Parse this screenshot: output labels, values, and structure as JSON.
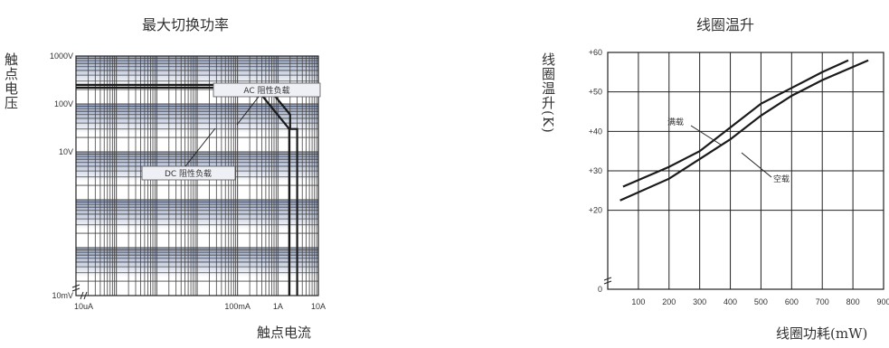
{
  "chart_data": [
    {
      "type": "line",
      "title": "最大切换功率",
      "xlabel": "触点电流",
      "ylabel": "触点电压",
      "xscale": "log",
      "yscale": "log",
      "xlim": [
        "10uA",
        "10A"
      ],
      "ylim": [
        "10mV",
        "1000V"
      ],
      "x_ticks": [
        "10uA",
        "100mA",
        "1A",
        "10A"
      ],
      "y_ticks": [
        "10mV",
        "10V",
        "100V",
        "1000V"
      ],
      "series": [
        {
          "name": "AC 阻性负载",
          "points": [
            [
              1e-05,
              250
            ],
            [
              0.5,
              250
            ],
            [
              2,
              60
            ],
            [
              2,
              30
            ],
            [
              3,
              30
            ],
            [
              3,
              0.01
            ]
          ]
        },
        {
          "name": "DC 阻性负载",
          "points": [
            [
              1e-05,
              220
            ],
            [
              0.28,
              220
            ],
            [
              1.9,
              30
            ],
            [
              1.9,
              0.01
            ]
          ]
        }
      ]
    },
    {
      "type": "line",
      "title": "线圈温升",
      "xlabel": "线圈功耗(mW)",
      "ylabel": "线圈温升(K)",
      "xlim": [
        0,
        900
      ],
      "ylim": [
        0,
        60
      ],
      "x_ticks": [
        "100",
        "200",
        "300",
        "400",
        "500",
        "600",
        "700",
        "800",
        "900"
      ],
      "y_ticks": [
        "0",
        "+20",
        "+30",
        "+40",
        "+50",
        "+60"
      ],
      "series": [
        {
          "name": "满载",
          "points": [
            [
              50,
              26
            ],
            [
              200,
              31
            ],
            [
              300,
              35
            ],
            [
              400,
              41
            ],
            [
              500,
              47
            ],
            [
              600,
              51
            ],
            [
              700,
              55
            ],
            [
              785,
              58
            ]
          ]
        },
        {
          "name": "空载",
          "points": [
            [
              40,
              22.5
            ],
            [
              200,
              28
            ],
            [
              300,
              33
            ],
            [
              400,
              38
            ],
            [
              500,
              44
            ],
            [
              600,
              49
            ],
            [
              700,
              53
            ],
            [
              850,
              58
            ]
          ]
        }
      ]
    }
  ]
}
